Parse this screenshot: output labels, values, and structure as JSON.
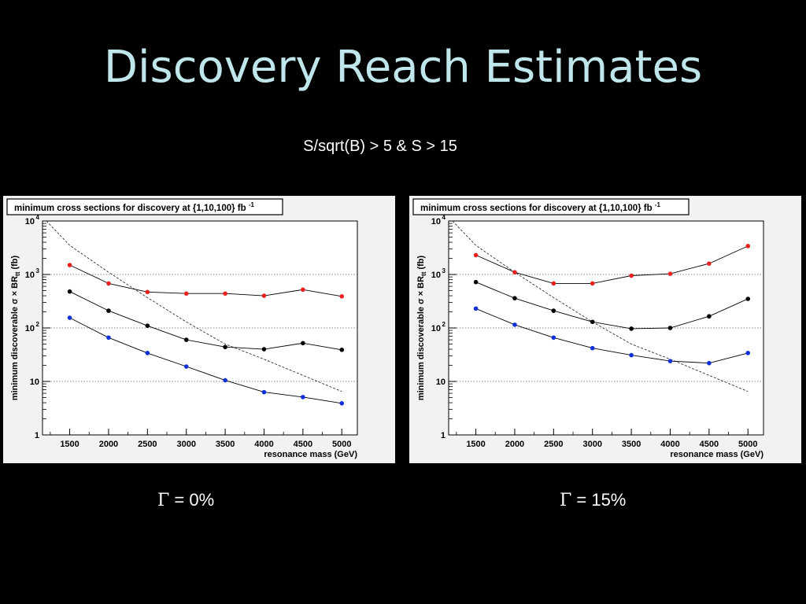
{
  "slide": {
    "title": "Discovery Reach Estimates",
    "subtitle": "S/sqrt(B) > 5  &  S > 15"
  },
  "captions": [
    {
      "symbol": "Γ",
      "text": " = 0%"
    },
    {
      "symbol": "Γ",
      "text": " = 15%"
    }
  ],
  "colors": {
    "red": "#e8231f",
    "black": "#000000",
    "blue": "#1030d8",
    "reference": "#333333"
  },
  "chart_data": [
    {
      "type": "line",
      "title": "minimum cross sections for discovery at {1,10,100} fb",
      "title_sup": "-1",
      "ylabel_parts": {
        "main": "minimum discoverable σ × BR",
        "sub": "tt",
        "unit": " (fb)"
      },
      "xlabel": "resonance mass (GeV)",
      "yscale": "log",
      "ylim": [
        1,
        10000
      ],
      "xlim": [
        1150,
        5200
      ],
      "grid": "horizontal-dotted",
      "xticks": [
        1500,
        2000,
        2500,
        3000,
        3500,
        4000,
        4500,
        5000
      ],
      "yticks": [
        {
          "value": 1,
          "base": "1",
          "exp": ""
        },
        {
          "value": 10,
          "base": "10",
          "exp": ""
        },
        {
          "value": 100,
          "base": "10",
          "exp": "2"
        },
        {
          "value": 1000,
          "base": "10",
          "exp": "3"
        },
        {
          "value": 10000,
          "base": "10",
          "exp": "4"
        }
      ],
      "series": [
        {
          "color": "red",
          "x": [
            1500,
            2000,
            2500,
            3000,
            3500,
            4000,
            4500,
            5000
          ],
          "y": [
            1500,
            680,
            470,
            440,
            440,
            400,
            520,
            390
          ]
        },
        {
          "color": "black",
          "x": [
            1500,
            2000,
            2500,
            3000,
            3500,
            4000,
            4500,
            5000
          ],
          "y": [
            480,
            210,
            110,
            60,
            44,
            40,
            52,
            39
          ]
        },
        {
          "color": "blue",
          "x": [
            1500,
            2000,
            2500,
            3000,
            3500,
            4000,
            4500,
            5000
          ],
          "y": [
            155,
            66,
            34,
            19,
            10.5,
            6.3,
            5.1,
            3.9
          ]
        }
      ],
      "reference_curve": {
        "x": [
          1200,
          1500,
          2000,
          2500,
          3000,
          3500,
          4000,
          4500,
          5000
        ],
        "y": [
          10000,
          3500,
          1100,
          370,
          130,
          50,
          26,
          13,
          6.5
        ]
      }
    },
    {
      "type": "line",
      "title": "minimum cross sections for discovery at {1,10,100} fb",
      "title_sup": "-1",
      "ylabel_parts": {
        "main": "minimum discoverable σ × BR",
        "sub": "tt",
        "unit": " (fb)"
      },
      "xlabel": "resonance mass (GeV)",
      "yscale": "log",
      "ylim": [
        1,
        10000
      ],
      "xlim": [
        1150,
        5200
      ],
      "grid": "horizontal-dotted",
      "xticks": [
        1500,
        2000,
        2500,
        3000,
        3500,
        4000,
        4500,
        5000
      ],
      "yticks": [
        {
          "value": 1,
          "base": "1",
          "exp": ""
        },
        {
          "value": 10,
          "base": "10",
          "exp": ""
        },
        {
          "value": 100,
          "base": "10",
          "exp": "2"
        },
        {
          "value": 1000,
          "base": "10",
          "exp": "3"
        },
        {
          "value": 10000,
          "base": "10",
          "exp": "4"
        }
      ],
      "series": [
        {
          "color": "red",
          "x": [
            1500,
            2000,
            2500,
            3000,
            3500,
            4000,
            4500,
            5000
          ],
          "y": [
            2300,
            1100,
            680,
            680,
            950,
            1030,
            1600,
            3400
          ]
        },
        {
          "color": "black",
          "x": [
            1500,
            2000,
            2500,
            3000,
            3500,
            4000,
            4500,
            5000
          ],
          "y": [
            720,
            360,
            210,
            130,
            97,
            100,
            165,
            350
          ]
        },
        {
          "color": "blue",
          "x": [
            1500,
            2000,
            2500,
            3000,
            3500,
            4000,
            4500,
            5000
          ],
          "y": [
            230,
            115,
            66,
            42,
            31,
            24,
            22,
            34
          ]
        }
      ],
      "reference_curve": {
        "x": [
          1200,
          1500,
          2000,
          2500,
          3000,
          3500,
          4000,
          4500,
          5000
        ],
        "y": [
          10000,
          3500,
          1100,
          370,
          130,
          50,
          26,
          13,
          6.5
        ]
      }
    }
  ]
}
